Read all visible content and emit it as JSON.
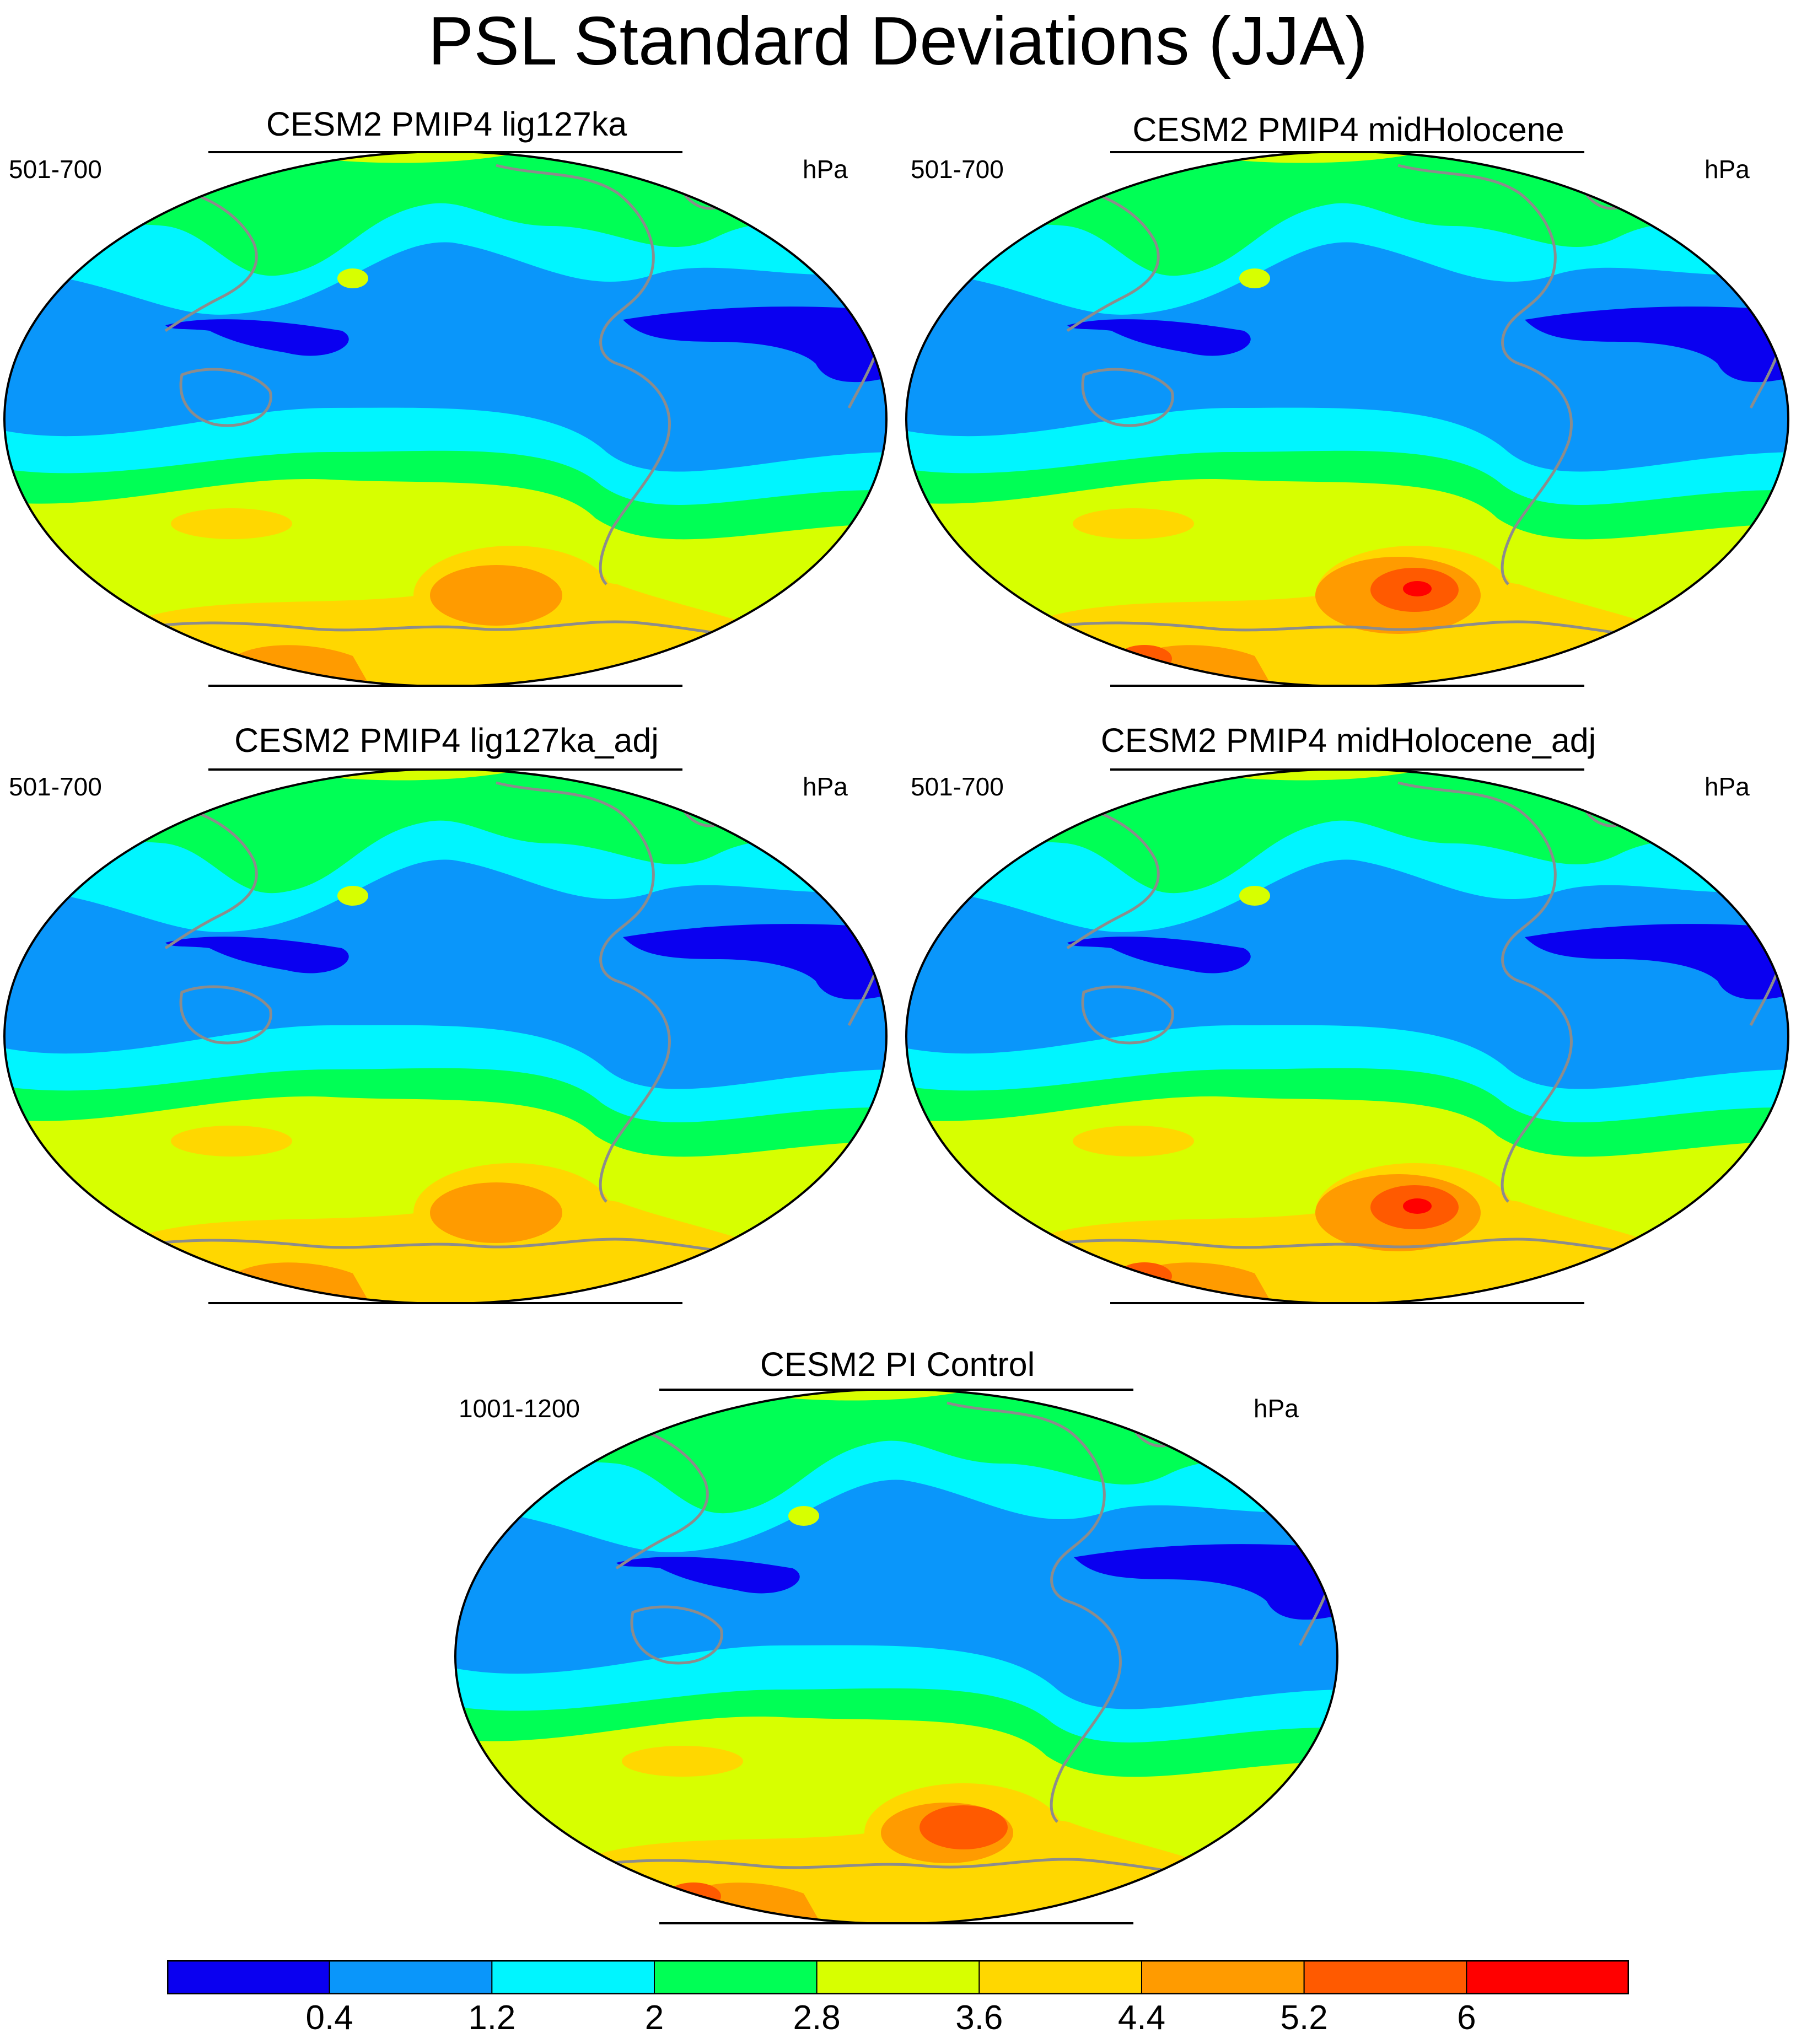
{
  "title": "PSL Standard Deviations (JJA)",
  "panels": [
    {
      "title": "CESM2 PMIP4 lig127ka",
      "left_label": "501-700",
      "right_label": "hPa"
    },
    {
      "title": "CESM2 PMIP4 midHolocene",
      "left_label": "501-700",
      "right_label": "hPa"
    },
    {
      "title": "CESM2 PMIP4 lig127ka_adj",
      "left_label": "501-700",
      "right_label": "hPa"
    },
    {
      "title": "CESM2 PMIP4 midHolocene_adj",
      "left_label": "501-700",
      "right_label": "hPa"
    },
    {
      "title": "CESM2 PI Control",
      "left_label": "1001-1200",
      "right_label": "hPa"
    }
  ],
  "colorbar": {
    "labels": [
      "0.4",
      "1.2",
      "2",
      "2.8",
      "3.6",
      "4.4",
      "5.2",
      "6"
    ],
    "colors": [
      "#0a00f0",
      "#0a96fa",
      "#00f5ff",
      "#00ff55",
      "#d7ff00",
      "#ffd700",
      "#ff9b00",
      "#ff5a00",
      "#ff0000"
    ]
  },
  "map_colors": {
    "ocean_base": "#0a96fa",
    "land_outline": "#8c8c8c",
    "band_cyan": "#00f5ff",
    "band_green": "#00ff55",
    "band_yellow": "#d7ff00",
    "band_gold": "#ffd700",
    "band_orange": "#ff9b00",
    "band_darkorange": "#ff5a00",
    "band_red": "#ff0000",
    "low_blue": "#0a00f0"
  }
}
